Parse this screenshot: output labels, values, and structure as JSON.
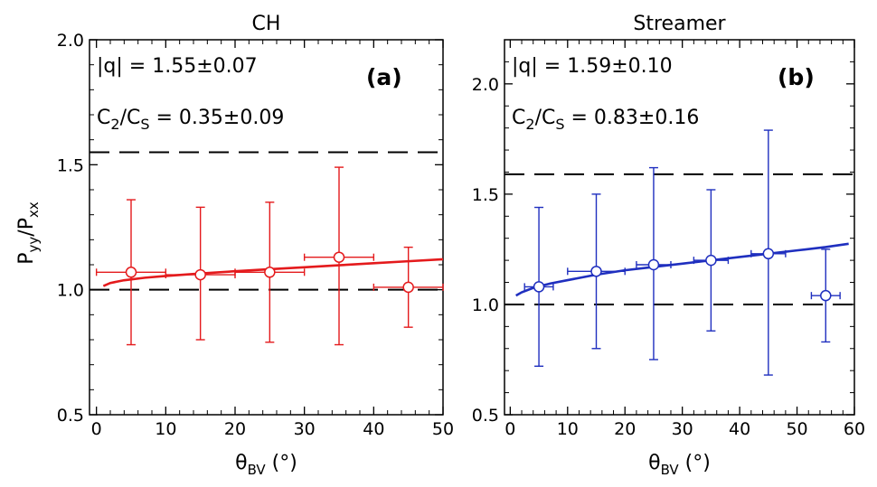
{
  "y_axis_label": {
    "main": "P",
    "sub1": "yy",
    "slash": "/P",
    "sub2": "xx"
  },
  "chart_data": [
    {
      "type": "scatter",
      "title": "CH",
      "panel_label": "(a)",
      "color": "#e41a1c",
      "xlabel": {
        "main": "θ",
        "sub": "BV",
        "unit": " (°)"
      },
      "xlim": [
        -1,
        50
      ],
      "ylim": [
        0.5,
        2.0
      ],
      "xticks": [
        0,
        10,
        20,
        30,
        40,
        50
      ],
      "yticks": [
        0.5,
        1.0,
        1.5,
        2.0
      ],
      "ytick_labels": [
        "0.5",
        "1.0",
        "1.5",
        "2.0"
      ],
      "annotation_q": "|q| = 1.55±0.07",
      "annotation_c": {
        "a": "C",
        "a_sub": "2",
        "b": "/C",
        "b_sub": "S",
        "rest": " = 0.35±0.09"
      },
      "hlines": [
        1.0,
        1.55
      ],
      "points": [
        {
          "x": 5,
          "y": 1.07,
          "xerr": 5,
          "yerr_low": 0.78,
          "yerr_high": 1.36
        },
        {
          "x": 15,
          "y": 1.06,
          "xerr": 5,
          "yerr_low": 0.8,
          "yerr_high": 1.33
        },
        {
          "x": 25,
          "y": 1.07,
          "xerr": 5,
          "yerr_low": 0.79,
          "yerr_high": 1.35
        },
        {
          "x": 35,
          "y": 1.13,
          "xerr": 5,
          "yerr_low": 0.78,
          "yerr_high": 1.49
        },
        {
          "x": 45,
          "y": 1.01,
          "xerr": 5,
          "yerr_low": 0.85,
          "yerr_high": 1.17
        }
      ],
      "fit_curve": {
        "x": [
          1,
          2,
          4,
          7,
          10,
          15,
          20,
          25,
          30,
          35,
          40,
          45,
          50
        ],
        "y": [
          1.015,
          1.027,
          1.038,
          1.048,
          1.055,
          1.065,
          1.074,
          1.082,
          1.09,
          1.098,
          1.106,
          1.114,
          1.122
        ]
      }
    },
    {
      "type": "scatter",
      "title": "Streamer",
      "panel_label": "(b)",
      "color": "#1f2fbf",
      "xlabel": {
        "main": "θ",
        "sub": "BV",
        "unit": " (°)"
      },
      "xlim": [
        -1,
        60
      ],
      "ylim": [
        0.5,
        2.2
      ],
      "xticks": [
        0,
        10,
        20,
        30,
        40,
        50,
        60
      ],
      "yticks": [
        0.5,
        1.0,
        1.5,
        2.0
      ],
      "ytick_labels": [
        "0.5",
        "1.0",
        "1.5",
        "2.0"
      ],
      "annotation_q": "|q| = 1.59±0.10",
      "annotation_c": {
        "a": "C",
        "a_sub": "2",
        "b": "/C",
        "b_sub": "S",
        "rest": " = 0.83±0.16"
      },
      "hlines": [
        1.0,
        1.59
      ],
      "points": [
        {
          "x": 5,
          "y": 1.08,
          "xerr": 2.5,
          "yerr_low": 0.72,
          "yerr_high": 1.44
        },
        {
          "x": 15,
          "y": 1.15,
          "xerr": 5,
          "yerr_low": 0.8,
          "yerr_high": 1.5
        },
        {
          "x": 25,
          "y": 1.18,
          "xerr": 3,
          "yerr_low": 0.75,
          "yerr_high": 1.62
        },
        {
          "x": 35,
          "y": 1.2,
          "xerr": 3,
          "yerr_low": 0.88,
          "yerr_high": 1.52
        },
        {
          "x": 45,
          "y": 1.23,
          "xerr": 3,
          "yerr_low": 0.68,
          "yerr_high": 1.79
        },
        {
          "x": 55,
          "y": 1.04,
          "xerr": 2.5,
          "yerr_low": 0.83,
          "yerr_high": 1.25
        }
      ],
      "fit_curve": {
        "x": [
          1,
          2,
          4,
          7,
          10,
          15,
          20,
          25,
          30,
          35,
          40,
          45,
          50,
          55,
          59
        ],
        "y": [
          1.04,
          1.055,
          1.075,
          1.095,
          1.11,
          1.135,
          1.155,
          1.17,
          1.185,
          1.2,
          1.215,
          1.23,
          1.245,
          1.26,
          1.275
        ]
      }
    }
  ]
}
